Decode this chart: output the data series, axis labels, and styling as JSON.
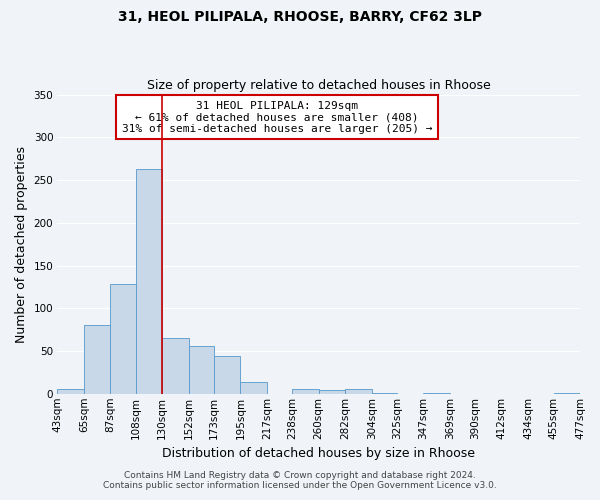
{
  "title_line1": "31, HEOL PILIPALA, RHOOSE, BARRY, CF62 3LP",
  "title_line2": "Size of property relative to detached houses in Rhoose",
  "xlabel": "Distribution of detached houses by size in Rhoose",
  "ylabel": "Number of detached properties",
  "bar_color": "#c8d8e8",
  "bar_edge_color": "#5599cc",
  "bins": [
    43,
    65,
    87,
    108,
    130,
    152,
    173,
    195,
    217,
    238,
    260,
    282,
    304,
    325,
    347,
    369,
    390,
    412,
    434,
    455,
    477
  ],
  "bin_labels": [
    "43sqm",
    "65sqm",
    "87sqm",
    "108sqm",
    "130sqm",
    "152sqm",
    "173sqm",
    "195sqm",
    "217sqm",
    "238sqm",
    "260sqm",
    "282sqm",
    "304sqm",
    "325sqm",
    "347sqm",
    "369sqm",
    "390sqm",
    "412sqm",
    "434sqm",
    "455sqm",
    "477sqm"
  ],
  "bar_heights": [
    6,
    81,
    128,
    263,
    65,
    56,
    44,
    14,
    0,
    6,
    4,
    5,
    1,
    0,
    1,
    0,
    0,
    0,
    0,
    1
  ],
  "ylim": [
    0,
    350
  ],
  "yticks": [
    0,
    50,
    100,
    150,
    200,
    250,
    300,
    350
  ],
  "vline_x": 130,
  "vline_color": "#cc0000",
  "annotation_title": "31 HEOL PILIPALA: 129sqm",
  "annotation_line1": "← 61% of detached houses are smaller (408)",
  "annotation_line2": "31% of semi-detached houses are larger (205) →",
  "annotation_box_color": "#ffffff",
  "annotation_box_edge": "#cc0000",
  "footer_line1": "Contains HM Land Registry data © Crown copyright and database right 2024.",
  "footer_line2": "Contains public sector information licensed under the Open Government Licence v3.0.",
  "background_color": "#f0f4f8",
  "grid_color": "#ffffff",
  "title_fontsize": 10,
  "subtitle_fontsize": 9,
  "axis_label_fontsize": 9,
  "tick_fontsize": 7.5,
  "annotation_fontsize": 8,
  "footer_fontsize": 6.5
}
